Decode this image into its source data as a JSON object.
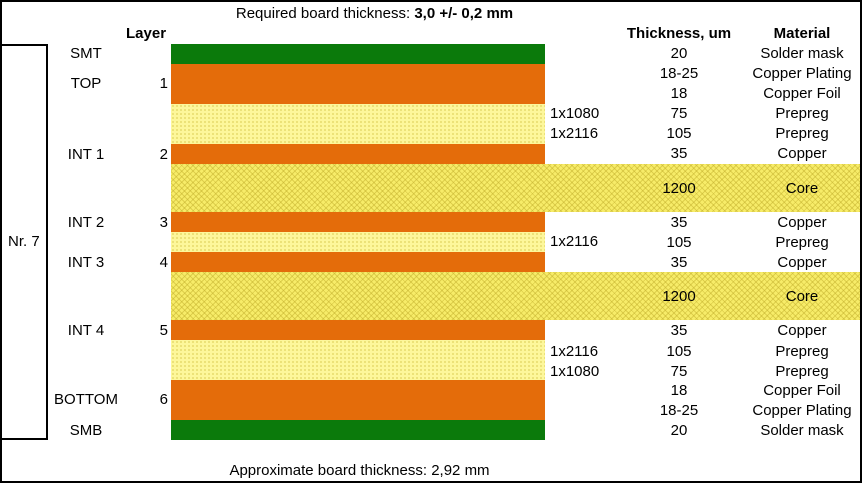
{
  "header": {
    "required_prefix": "Required board thickness: ",
    "required_value": "3,0 +/- 0,2 mm"
  },
  "columns": {
    "layer": "Layer",
    "thickness": "Thickness, um",
    "material": "Material"
  },
  "stack_label": "Nr. 7",
  "layer_names": [
    {
      "name": "SMT",
      "num": ""
    },
    {
      "name": "TOP",
      "num": "1"
    },
    {
      "name": "INT 1",
      "num": "2"
    },
    {
      "name": "INT 2",
      "num": "3"
    },
    {
      "name": "INT 3",
      "num": "4"
    },
    {
      "name": "INT 4",
      "num": "5"
    },
    {
      "name": "BOTTOM",
      "num": "6"
    },
    {
      "name": "SMB",
      "num": ""
    }
  ],
  "rows": [
    {
      "code": "",
      "thickness": "20",
      "material": "Solder mask"
    },
    {
      "code": "",
      "thickness": "18-25",
      "material": "Copper Plating"
    },
    {
      "code": "",
      "thickness": "18",
      "material": "Copper Foil"
    },
    {
      "code": "1x1080",
      "thickness": "75",
      "material": "Prepreg"
    },
    {
      "code": "1x2116",
      "thickness": "105",
      "material": "Prepreg"
    },
    {
      "code": "",
      "thickness": "35",
      "material": "Copper"
    },
    {
      "code": "",
      "thickness": "1200",
      "material": "Core"
    },
    {
      "code": "",
      "thickness": "35",
      "material": "Copper"
    },
    {
      "code": "1x2116",
      "thickness": "105",
      "material": "Prepreg"
    },
    {
      "code": "",
      "thickness": "35",
      "material": "Copper"
    },
    {
      "code": "",
      "thickness": "1200",
      "material": "Core"
    },
    {
      "code": "",
      "thickness": "35",
      "material": "Copper"
    },
    {
      "code": "1x2116",
      "thickness": "105",
      "material": "Prepreg"
    },
    {
      "code": "1x1080",
      "thickness": "75",
      "material": "Prepreg"
    },
    {
      "code": "",
      "thickness": "18",
      "material": "Copper Foil"
    },
    {
      "code": "",
      "thickness": "18-25",
      "material": "Copper Plating"
    },
    {
      "code": "",
      "thickness": "20",
      "material": "Solder mask"
    }
  ],
  "colors": {
    "solder_mask": "#0b7a0b",
    "copper": "#e46c0a",
    "prepreg": "#fdf79b",
    "core": "#f7ec68"
  },
  "footer": "Approximate board thickness: 2,92 mm"
}
